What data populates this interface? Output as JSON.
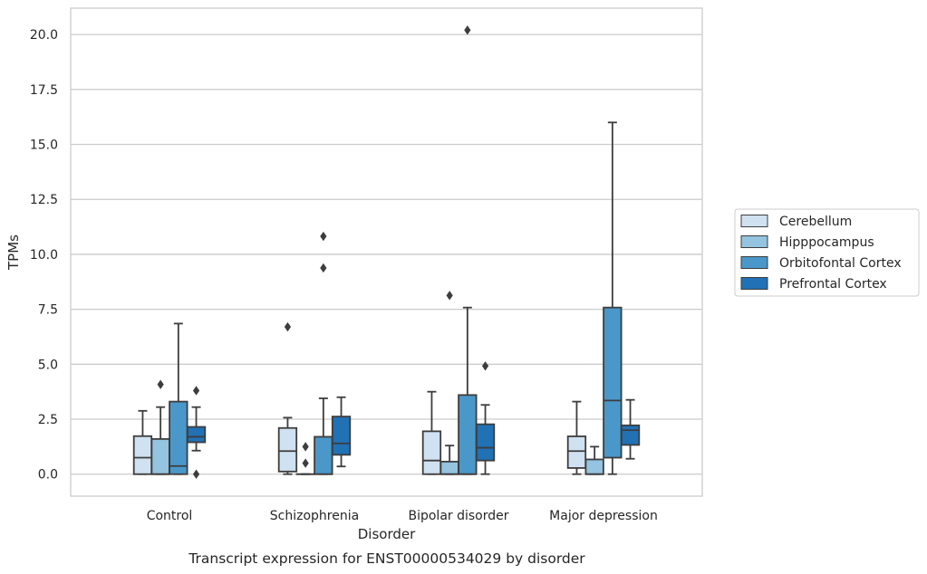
{
  "chart_data": {
    "type": "box",
    "title": "",
    "caption": "Transcript expression for ENST00000534029 by disorder",
    "xlabel": "Disorder",
    "ylabel": "TPMs",
    "ylim": [
      -1.0,
      21.2
    ],
    "yticks": [
      0.0,
      2.5,
      5.0,
      7.5,
      10.0,
      12.5,
      15.0,
      17.5,
      20.0
    ],
    "ytick_labels": [
      "0.0",
      "2.5",
      "5.0",
      "7.5",
      "10.0",
      "12.5",
      "15.0",
      "17.5",
      "20.0"
    ],
    "grid": "horizontal",
    "legend_position": "right",
    "categories": [
      "Control",
      "Schizophrenia",
      "Bipolar disorder",
      "Major depression"
    ],
    "series": [
      {
        "name": "Cerebellum",
        "color": "#d0e1f2",
        "boxes": [
          {
            "whisker_low": 0.0,
            "q1": 0.0,
            "median": 0.75,
            "q3": 1.73,
            "whisker_high": 2.88,
            "outliers": []
          },
          {
            "whisker_low": 0.0,
            "q1": 0.12,
            "median": 1.05,
            "q3": 2.1,
            "whisker_high": 2.57,
            "outliers": [
              6.7
            ]
          },
          {
            "whisker_low": 0.0,
            "q1": 0.0,
            "median": 0.62,
            "q3": 1.95,
            "whisker_high": 3.75,
            "outliers": []
          },
          {
            "whisker_low": 0.0,
            "q1": 0.28,
            "median": 1.05,
            "q3": 1.72,
            "whisker_high": 3.3,
            "outliers": []
          }
        ]
      },
      {
        "name": "Hipppocampus",
        "color": "#94c4df",
        "boxes": [
          {
            "whisker_low": 0.0,
            "q1": 0.0,
            "median": 0.0,
            "q3": 1.6,
            "whisker_high": 3.05,
            "outliers": [
              4.08
            ]
          },
          {
            "whisker_low": 0.0,
            "q1": 0.0,
            "median": 0.0,
            "q3": 0.0,
            "whisker_high": 0.0,
            "outliers": [
              1.25,
              0.5
            ]
          },
          {
            "whisker_low": 0.0,
            "q1": 0.0,
            "median": 0.0,
            "q3": 0.57,
            "whisker_high": 1.3,
            "outliers": [
              8.13
            ]
          },
          {
            "whisker_low": 0.0,
            "q1": 0.0,
            "median": 0.0,
            "q3": 0.67,
            "whisker_high": 1.25,
            "outliers": []
          }
        ]
      },
      {
        "name": "Orbitofontal Cortex",
        "color": "#4a98c9",
        "boxes": [
          {
            "whisker_low": 0.0,
            "q1": 0.0,
            "median": 0.37,
            "q3": 3.3,
            "whisker_high": 6.85,
            "outliers": []
          },
          {
            "whisker_low": 0.0,
            "q1": 0.0,
            "median": 0.0,
            "q3": 1.7,
            "whisker_high": 3.45,
            "outliers": [
              9.38,
              10.82
            ]
          },
          {
            "whisker_low": 0.0,
            "q1": 0.0,
            "median": 0.0,
            "q3": 3.6,
            "whisker_high": 7.58,
            "outliers": [
              20.2
            ]
          },
          {
            "whisker_low": 0.0,
            "q1": 0.75,
            "median": 3.35,
            "q3": 7.58,
            "whisker_high": 16.0,
            "outliers": []
          }
        ]
      },
      {
        "name": "Prefrontal Cortex",
        "color": "#2171b5",
        "boxes": [
          {
            "whisker_low": 1.07,
            "q1": 1.45,
            "median": 1.7,
            "q3": 2.15,
            "whisker_high": 3.05,
            "outliers": [
              3.8,
              0.0
            ]
          },
          {
            "whisker_low": 0.35,
            "q1": 0.88,
            "median": 1.4,
            "q3": 2.62,
            "whisker_high": 3.5,
            "outliers": []
          },
          {
            "whisker_low": 0.0,
            "q1": 0.62,
            "median": 1.2,
            "q3": 2.27,
            "whisker_high": 3.15,
            "outliers": [
              4.92
            ]
          },
          {
            "whisker_low": 0.7,
            "q1": 1.33,
            "median": 2.0,
            "q3": 2.22,
            "whisker_high": 3.38,
            "outliers": []
          }
        ]
      }
    ]
  }
}
